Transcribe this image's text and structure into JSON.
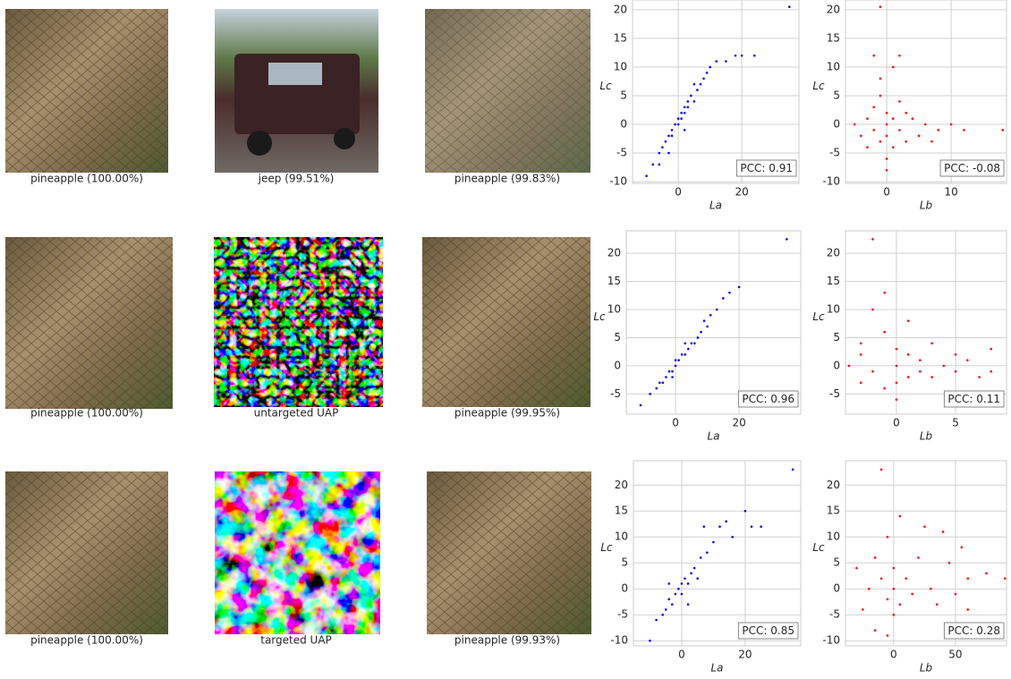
{
  "figure": {
    "rows": [
      {
        "captions": [
          "pineapple (100.00%)",
          "jeep (99.51%)",
          "pineapple (99.83%)"
        ]
      },
      {
        "captions": [
          "pineapple (100.00%)",
          "untargeted UAP",
          "pineapple (99.95%)"
        ]
      },
      {
        "captions": [
          "pineapple (100.00%)",
          "targeted UAP",
          "pineapple (99.93%)"
        ]
      }
    ]
  },
  "chart_data": [
    {
      "type": "scatter",
      "xlabel": "La",
      "ylabel": "Lc",
      "annotation": "PCC: 0.91",
      "color": "#0000ff",
      "grid": true,
      "xlim": [
        -14.4,
        38
      ],
      "ylim": [
        -10.3,
        21.7
      ],
      "xticks": [
        0,
        20
      ],
      "yticks": [
        -10,
        -5,
        0,
        5,
        10,
        15,
        20
      ],
      "x": [
        -10,
        -8,
        -6,
        -5,
        -4,
        -3,
        -2,
        -2,
        -1,
        0,
        0,
        1,
        1,
        2,
        2,
        3,
        3,
        4,
        5,
        6,
        7,
        8,
        9,
        10,
        12,
        15,
        18,
        20,
        24,
        35,
        -3,
        2,
        5,
        -6
      ],
      "y": [
        -9,
        -7,
        -5,
        -4,
        -3,
        -2,
        -2,
        -1,
        0,
        0,
        1,
        1,
        2,
        2,
        3,
        3,
        4,
        5,
        4,
        6,
        7,
        8,
        9,
        10,
        11,
        11,
        12,
        12,
        12,
        20.5,
        -5,
        -1,
        7,
        -7
      ]
    },
    {
      "type": "scatter",
      "xlabel": "Lb",
      "ylabel": "Lc",
      "annotation": "PCC: -0.08",
      "color": "#ff0000",
      "grid": true,
      "xlim": [
        -6.4,
        18.6
      ],
      "ylim": [
        -10.3,
        21.7
      ],
      "xticks": [
        0,
        10
      ],
      "yticks": [
        -10,
        -5,
        0,
        5,
        10,
        15,
        20
      ],
      "x": [
        -5,
        -4,
        -3,
        -3,
        -2,
        -2,
        -1,
        -1,
        -1,
        0,
        0,
        0,
        0,
        1,
        1,
        1,
        2,
        2,
        3,
        3,
        4,
        5,
        6,
        7,
        8,
        10,
        12,
        18,
        -1,
        -2,
        2,
        0
      ],
      "y": [
        0,
        -2,
        1,
        -4,
        3,
        -1,
        8,
        -3,
        5,
        0,
        2,
        -2,
        -6,
        10,
        1,
        -4,
        4,
        -1,
        2,
        -3,
        1,
        -2,
        0,
        -3,
        -1,
        0,
        -1,
        -1,
        20.5,
        12,
        12,
        -8
      ]
    },
    {
      "type": "scatter",
      "xlabel": "La",
      "ylabel": "Lc",
      "annotation": "PCC: 0.96",
      "color": "#0000ff",
      "grid": true,
      "xlim": [
        -15.5,
        39.4
      ],
      "ylim": [
        -8.6,
        24
      ],
      "xticks": [
        0,
        20
      ],
      "yticks": [
        -5,
        0,
        5,
        10,
        15,
        20
      ],
      "x": [
        -11,
        -8,
        -6,
        -5,
        -4,
        -3,
        -2,
        -1,
        0,
        0,
        1,
        2,
        3,
        4,
        5,
        6,
        7,
        8,
        10,
        11,
        13,
        15,
        17,
        20,
        35,
        -1,
        3,
        9
      ],
      "y": [
        -7,
        -5,
        -4,
        -3,
        -3,
        -2,
        -1,
        -1,
        0,
        1,
        1,
        2,
        2,
        3,
        4,
        4,
        5,
        6,
        7,
        9,
        10,
        12,
        13,
        14,
        22.5,
        -2,
        4,
        8
      ]
    },
    {
      "type": "scatter",
      "xlabel": "Lb",
      "ylabel": "Lc",
      "annotation": "PCC: 0.11",
      "color": "#ff0000",
      "grid": true,
      "xlim": [
        -4.3,
        9.3
      ],
      "ylim": [
        -8.6,
        24
      ],
      "xticks": [
        0,
        5
      ],
      "yticks": [
        -5,
        0,
        5,
        10,
        15,
        20
      ],
      "x": [
        -4,
        -3,
        -3,
        -2,
        -2,
        -2,
        -1,
        -1,
        -1,
        0,
        0,
        0,
        1,
        1,
        1,
        2,
        2,
        3,
        3,
        4,
        5,
        5,
        6,
        7,
        8,
        8,
        -3,
        0
      ],
      "y": [
        0,
        -3,
        4,
        22.5,
        10,
        -1,
        13,
        6,
        -4,
        0,
        3,
        -3,
        8,
        -2,
        2,
        1,
        -1,
        4,
        -2,
        0,
        -1,
        2,
        1,
        -2,
        3,
        -1,
        2,
        -6
      ]
    },
    {
      "type": "scatter",
      "xlabel": "La",
      "ylabel": "Lc",
      "annotation": "PCC: 0.85",
      "color": "#0000ff",
      "grid": true,
      "xlim": [
        -15.2,
        37.5
      ],
      "ylim": [
        -11,
        24.7
      ],
      "xticks": [
        0,
        20
      ],
      "yticks": [
        -10,
        -5,
        0,
        5,
        10,
        15,
        20
      ],
      "x": [
        -10,
        -8,
        -6,
        -5,
        -4,
        -3,
        -2,
        -1,
        0,
        0,
        1,
        2,
        3,
        4,
        5,
        6,
        8,
        10,
        12,
        14,
        16,
        20,
        22,
        25,
        35,
        -4,
        2,
        7
      ],
      "y": [
        -10,
        -6,
        -5,
        -4,
        -2,
        -3,
        -1,
        0,
        -1,
        1,
        2,
        1,
        3,
        4,
        2,
        6,
        7,
        9,
        12,
        13,
        10,
        15,
        12,
        12,
        23,
        1,
        -3,
        12
      ]
    },
    {
      "type": "scatter",
      "xlabel": "Lb",
      "ylabel": "Lc",
      "annotation": "PCC: 0.28",
      "color": "#ff0000",
      "grid": true,
      "xlim": [
        -39,
        91.3
      ],
      "ylim": [
        -11,
        24.7
      ],
      "xticks": [
        0,
        50
      ],
      "yticks": [
        -10,
        -5,
        0,
        5,
        10,
        15,
        20
      ],
      "x": [
        -30,
        -25,
        -20,
        -15,
        -15,
        -10,
        -10,
        -5,
        -5,
        0,
        0,
        0,
        5,
        5,
        10,
        15,
        20,
        25,
        30,
        35,
        40,
        45,
        50,
        55,
        60,
        60,
        75,
        90,
        -5
      ],
      "y": [
        4,
        -4,
        0,
        -8,
        6,
        23,
        2,
        -2,
        10,
        0,
        -5,
        4,
        14,
        -3,
        2,
        -1,
        6,
        12,
        0,
        -3,
        11,
        5,
        -1,
        8,
        2,
        -4,
        3,
        2,
        -9
      ]
    }
  ]
}
